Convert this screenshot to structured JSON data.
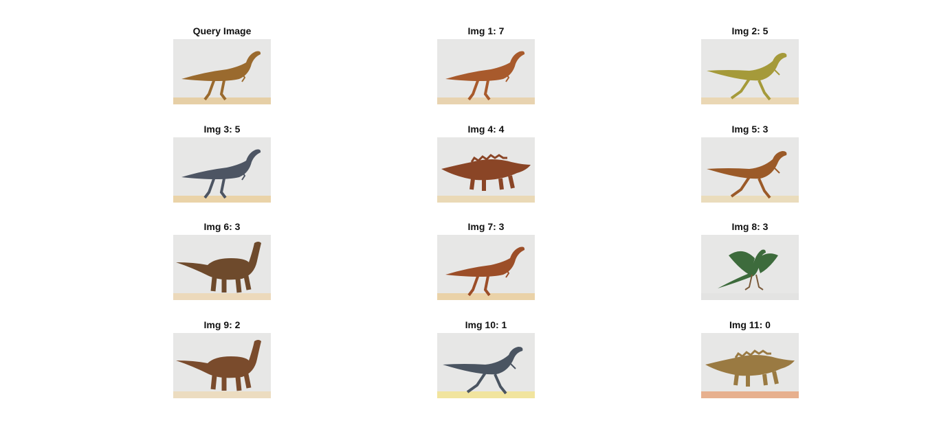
{
  "figure": {
    "panels": [
      {
        "title": "Query Image",
        "image": "query-dinosaur",
        "subject": "long-necked bipedal dinosaur, striped brown",
        "body": "#9a6a2e",
        "ground": "#e6cfa6",
        "pose": "biped"
      },
      {
        "title": "Img 1: 7",
        "image": "result-dinosaur-1",
        "subject": "crested bipedal dinosaur, red-orange",
        "body": "#a85a2c",
        "ground": "#e8d3b0",
        "pose": "biped"
      },
      {
        "title": "Img 2: 5",
        "image": "result-dinosaur-2",
        "subject": "running bipedal dinosaur, yellow-green",
        "body": "#a59a3a",
        "ground": "#ead7b4",
        "pose": "runner"
      },
      {
        "title": "Img 3: 5",
        "image": "result-dinosaur-3",
        "subject": "bipedal dinosaur, grey-blue with orange",
        "body": "#4d5563",
        "ground": "#ead3a8",
        "pose": "biped"
      },
      {
        "title": "Img 4: 4",
        "image": "result-dinosaur-4",
        "subject": "armored quadruped dinosaur, reddish-brown",
        "body": "#8a4526",
        "ground": "#ead9b6",
        "pose": "armored"
      },
      {
        "title": "Img 5: 3",
        "image": "result-dinosaur-5",
        "subject": "small predatory dinosaur, orange-brown",
        "body": "#9b5a28",
        "ground": "#eadcbc",
        "pose": "runner"
      },
      {
        "title": "Img 6: 3",
        "image": "result-dinosaur-6",
        "subject": "sauropod-like quadruped, dark brown",
        "body": "#6e4a2c",
        "ground": "#ecd9bb",
        "pose": "sauropod"
      },
      {
        "title": "Img 7: 3",
        "image": "result-dinosaur-7",
        "subject": "ostrich-like dinosaur, brown with grey legs",
        "body": "#9c4e28",
        "ground": "#ead2a8",
        "pose": "biped"
      },
      {
        "title": "Img 8: 3",
        "image": "result-dinosaur-8",
        "subject": "feathered winged dinosaur, green",
        "body": "#3d6b3c",
        "ground": "#e3e3e2",
        "pose": "winged"
      },
      {
        "title": "Img 9: 2",
        "image": "result-dinosaur-9",
        "subject": "long-necked quadruped, striped brown",
        "body": "#7a4b2c",
        "ground": "#ecdcc0",
        "pose": "sauropod"
      },
      {
        "title": "Img 10: 1",
        "image": "result-dinosaur-10",
        "subject": "slender bipedal dinosaur, grey-blue",
        "body": "#4a5461",
        "ground": "#f1e49e",
        "pose": "runner"
      },
      {
        "title": "Img 11: 0",
        "image": "result-dinosaur-11",
        "subject": "armored quadruped dinosaur, tan",
        "body": "#9a7a42",
        "ground": "#e7b08e",
        "pose": "armored"
      }
    ]
  }
}
